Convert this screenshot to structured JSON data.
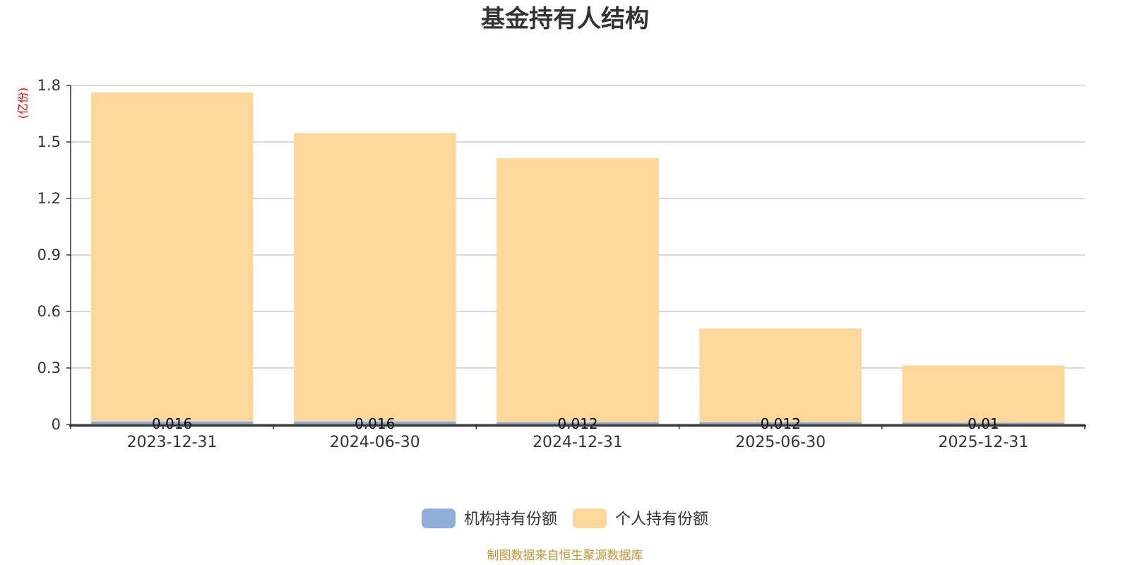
{
  "chart_data": {
    "type": "bar",
    "stacked": true,
    "title": "基金持有人结构",
    "ylabel": "(亿份)",
    "ylim": [
      0,
      1.8
    ],
    "yticks": [
      "0",
      "0.3",
      "0.6",
      "0.9",
      "1.2",
      "1.5",
      "1.8"
    ],
    "categories": [
      "2023-12-31",
      "2024-06-30",
      "2024-12-31",
      "2025-06-30",
      "2025-12-31"
    ],
    "series": [
      {
        "name": "机构持有份额",
        "color": "#8faedb",
        "values": [
          0.016,
          0.016,
          0.012,
          0.012,
          0.01
        ],
        "labels": [
          "0.016",
          "0.016",
          "0.012",
          "0.012",
          "0.01"
        ]
      },
      {
        "name": "个人持有份额",
        "color": "#fdd89a",
        "values": [
          1.747,
          1.531,
          1.402,
          0.498,
          0.303
        ]
      }
    ],
    "grid": true,
    "legend_position": "bottom"
  },
  "source_note": "制图数据来自恒生聚源数据库"
}
